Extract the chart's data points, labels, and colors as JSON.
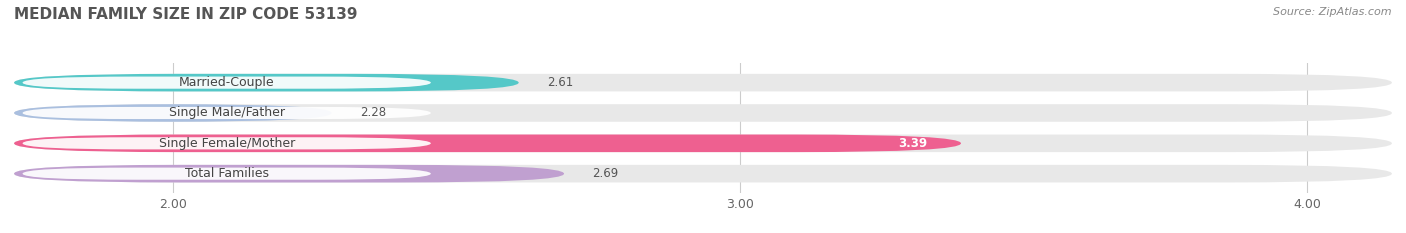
{
  "title": "MEDIAN FAMILY SIZE IN ZIP CODE 53139",
  "source": "Source: ZipAtlas.com",
  "categories": [
    "Married-Couple",
    "Single Male/Father",
    "Single Female/Mother",
    "Total Families"
  ],
  "values": [
    2.61,
    2.28,
    3.39,
    2.69
  ],
  "bar_colors": [
    "#55C8C8",
    "#AABFDF",
    "#EE6090",
    "#C0A0D0"
  ],
  "xlim_min": 1.72,
  "xlim_max": 4.15,
  "xticks": [
    2.0,
    3.0,
    4.0
  ],
  "xtick_labels": [
    "2.00",
    "3.00",
    "4.00"
  ],
  "background_color": "#ffffff",
  "bar_bg_color": "#e8e8e8",
  "title_fontsize": 11,
  "label_fontsize": 9,
  "value_fontsize": 8.5,
  "source_fontsize": 8,
  "bar_height": 0.58
}
